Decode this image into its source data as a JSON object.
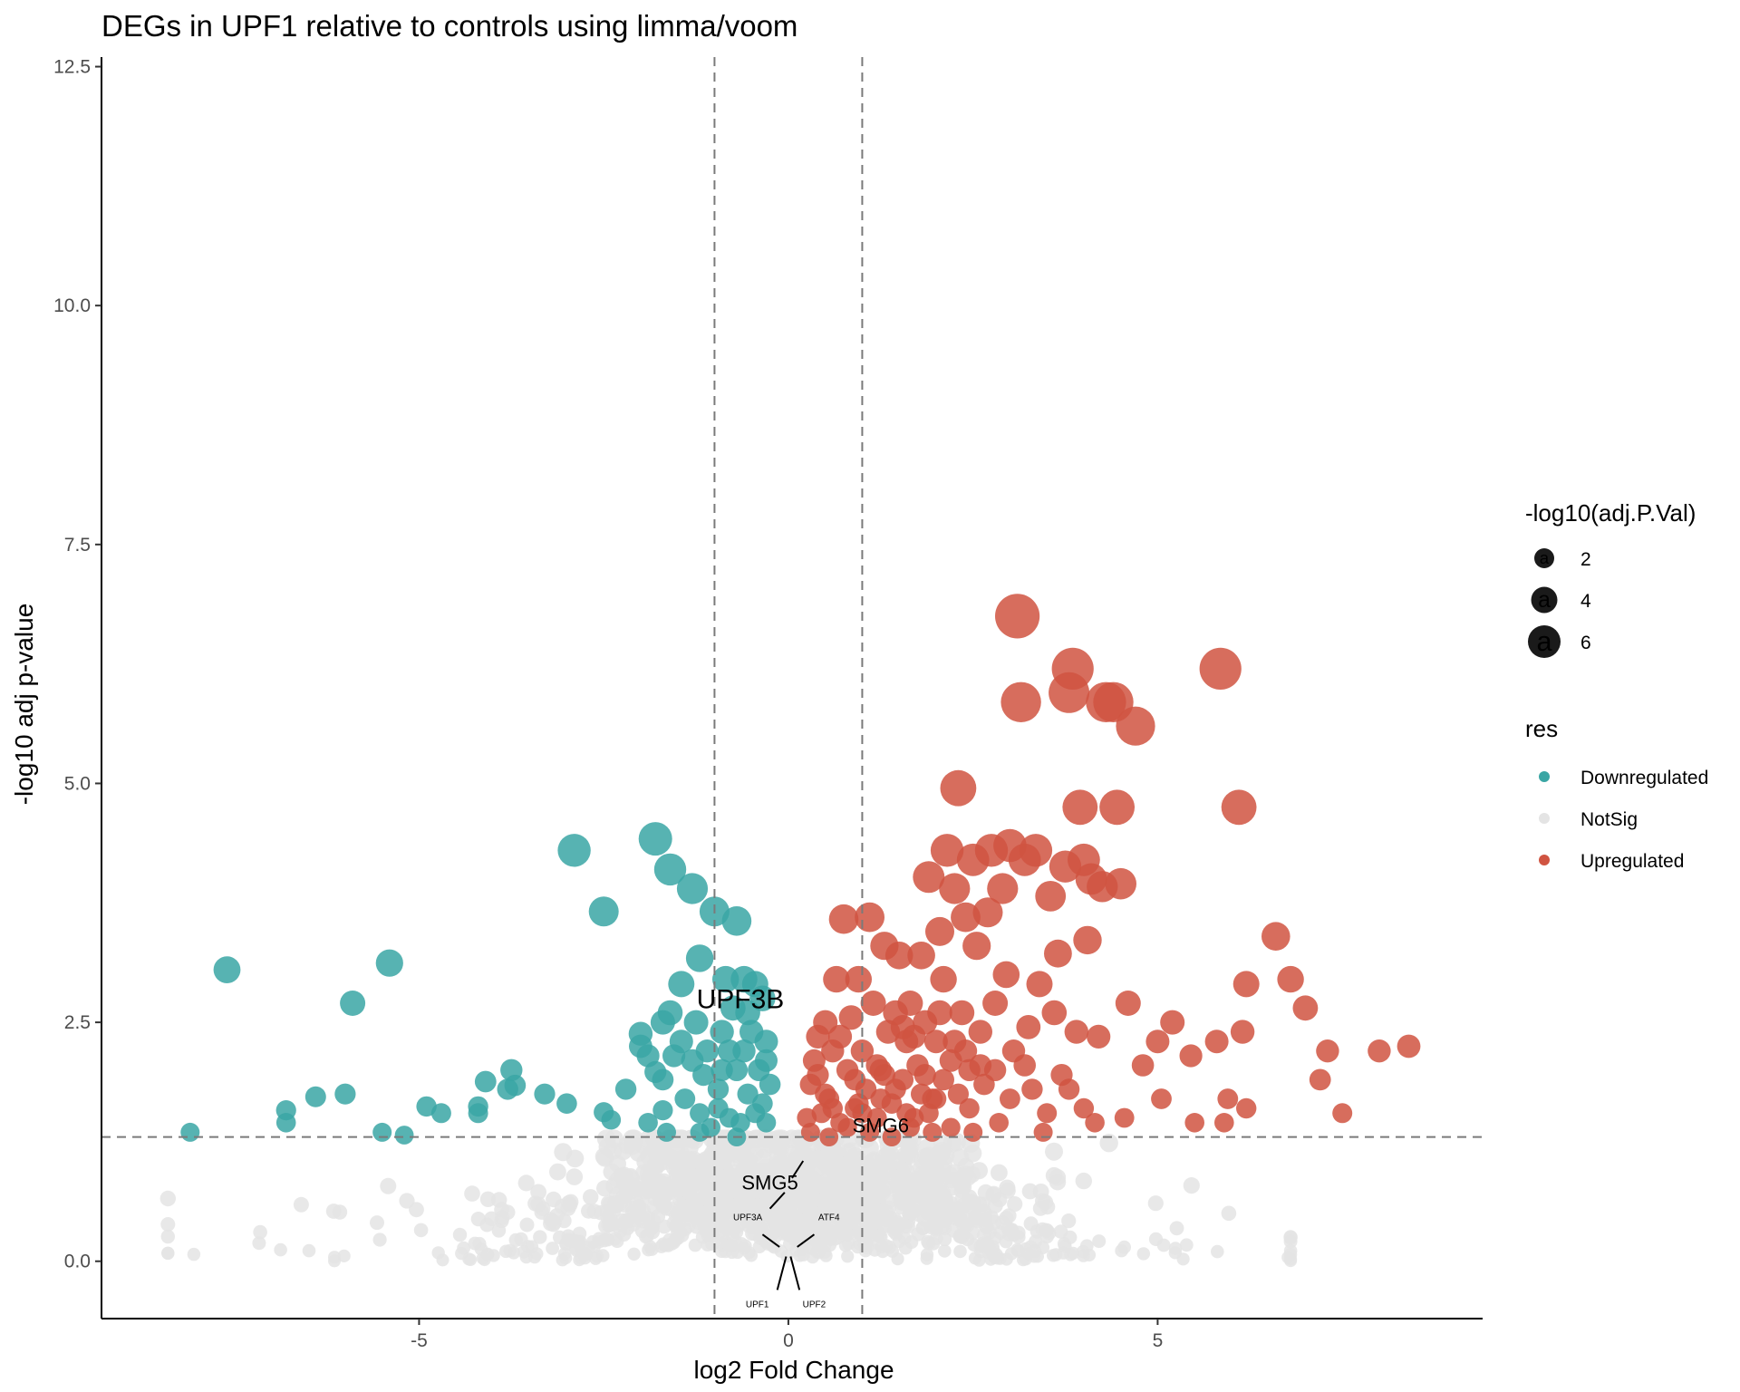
{
  "chart_data": {
    "type": "scatter",
    "title": "DEGs in UPF1 relative to controls using limma/voom",
    "xlabel": "log2 Fold Change",
    "ylabel": "-log10 adj p-value",
    "xlim": [
      -9.3,
      9.4
    ],
    "ylim": [
      -0.6,
      12.6
    ],
    "x_ticks": [
      -5,
      0,
      5
    ],
    "x_tick_labels": [
      "-5",
      "0",
      "5"
    ],
    "y_ticks": [
      0,
      2.5,
      5,
      7.5,
      10,
      12.5
    ],
    "y_tick_labels": [
      "0.0",
      "2.5",
      "5.0",
      "7.5",
      "10.0",
      "12.5"
    ],
    "thresholds": {
      "log2fc": [
        -1,
        1
      ],
      "neg_log10_padj": 1.3
    },
    "colors": {
      "Downregulated": "#3aa6a4",
      "NotSig": "#e4e4e4",
      "Upregulated": "#d05441"
    },
    "legend_size": {
      "title": "-log10(adj.P.Val)",
      "entries": [
        {
          "label": "2",
          "value": 2
        },
        {
          "label": "4",
          "value": 4
        },
        {
          "label": "6",
          "value": 6
        }
      ],
      "glyph": "a"
    },
    "legend_color": {
      "title": "res",
      "entries": [
        {
          "label": "Downregulated"
        },
        {
          "label": "NotSig"
        },
        {
          "label": "Upregulated"
        }
      ]
    },
    "series": [
      {
        "name": "Downregulated",
        "points": [
          [
            -8.1,
            1.35
          ],
          [
            -7.6,
            3.05
          ],
          [
            -6.8,
            1.45
          ],
          [
            -6.8,
            1.58
          ],
          [
            -6.4,
            1.72
          ],
          [
            -6.0,
            1.75
          ],
          [
            -5.9,
            2.7
          ],
          [
            -5.5,
            1.35
          ],
          [
            -5.4,
            3.12
          ],
          [
            -5.2,
            1.32
          ],
          [
            -4.9,
            1.62
          ],
          [
            -4.7,
            1.55
          ],
          [
            -4.2,
            1.55
          ],
          [
            -4.2,
            1.62
          ],
          [
            -4.1,
            1.88
          ],
          [
            -3.8,
            1.8
          ],
          [
            -3.75,
            2.0
          ],
          [
            -3.7,
            1.84
          ],
          [
            -3.3,
            1.75
          ],
          [
            -3.0,
            1.65
          ],
          [
            -2.9,
            4.3
          ],
          [
            -2.5,
            3.66
          ],
          [
            -2.5,
            1.56
          ],
          [
            -2.4,
            1.48
          ],
          [
            -2.2,
            1.8
          ],
          [
            -2.0,
            2.38
          ],
          [
            -2.0,
            2.25
          ],
          [
            -1.9,
            1.45
          ],
          [
            -1.9,
            2.15
          ],
          [
            -1.8,
            4.42
          ],
          [
            -1.8,
            1.98
          ],
          [
            -1.7,
            1.58
          ],
          [
            -1.7,
            2.5
          ],
          [
            -1.7,
            1.9
          ],
          [
            -1.65,
            1.35
          ],
          [
            -1.6,
            4.1
          ],
          [
            -1.6,
            2.6
          ],
          [
            -1.55,
            2.15
          ],
          [
            -1.45,
            2.9
          ],
          [
            -1.45,
            2.3
          ],
          [
            -1.4,
            1.7
          ],
          [
            -1.3,
            3.9
          ],
          [
            -1.3,
            2.1
          ],
          [
            -1.25,
            2.5
          ],
          [
            -1.2,
            3.17
          ],
          [
            -1.2,
            1.55
          ],
          [
            -1.15,
            1.95
          ],
          [
            -1.1,
            2.2
          ],
          [
            -1.05,
            1.4
          ],
          [
            -1.0,
            3.66
          ],
          [
            -0.95,
            1.6
          ],
          [
            -0.9,
            2.0
          ],
          [
            -0.9,
            2.4
          ],
          [
            -0.85,
            2.95
          ],
          [
            -0.8,
            1.5
          ],
          [
            -0.75,
            2.65
          ],
          [
            -0.7,
            3.56
          ],
          [
            -0.7,
            2.0
          ],
          [
            -0.65,
            1.45
          ],
          [
            -0.6,
            2.2
          ],
          [
            -0.6,
            2.95
          ],
          [
            -0.55,
            1.75
          ],
          [
            -0.5,
            2.4
          ],
          [
            -0.45,
            1.55
          ],
          [
            -0.4,
            2.0
          ],
          [
            -0.35,
            2.75
          ],
          [
            -0.3,
            1.45
          ],
          [
            -0.3,
            2.3
          ],
          [
            -0.25,
            1.85
          ],
          [
            -1.2,
            1.35
          ],
          [
            -0.95,
            1.8
          ],
          [
            -0.8,
            2.2
          ],
          [
            -0.7,
            1.3
          ],
          [
            -0.55,
            2.6
          ],
          [
            -0.45,
            2.9
          ],
          [
            -0.35,
            1.65
          ],
          [
            -0.3,
            2.1
          ]
        ]
      },
      {
        "name": "Upregulated",
        "points": [
          [
            0.25,
            1.5
          ],
          [
            0.3,
            1.85
          ],
          [
            0.35,
            2.1
          ],
          [
            0.4,
            2.35
          ],
          [
            0.45,
            1.55
          ],
          [
            0.5,
            2.5
          ],
          [
            0.55,
            1.7
          ],
          [
            0.6,
            2.2
          ],
          [
            0.65,
            2.95
          ],
          [
            0.7,
            1.45
          ],
          [
            0.75,
            3.58
          ],
          [
            0.8,
            2.0
          ],
          [
            0.85,
            2.55
          ],
          [
            0.9,
            1.6
          ],
          [
            0.95,
            2.95
          ],
          [
            1.0,
            2.2
          ],
          [
            1.05,
            1.8
          ],
          [
            1.1,
            3.6
          ],
          [
            1.15,
            2.7
          ],
          [
            1.2,
            1.5
          ],
          [
            1.25,
            2.0
          ],
          [
            1.3,
            3.3
          ],
          [
            1.35,
            2.4
          ],
          [
            1.4,
            1.65
          ],
          [
            1.45,
            2.6
          ],
          [
            1.5,
            3.2
          ],
          [
            1.55,
            1.9
          ],
          [
            1.6,
            2.3
          ],
          [
            1.65,
            2.7
          ],
          [
            1.7,
            1.5
          ],
          [
            1.75,
            2.05
          ],
          [
            1.8,
            3.2
          ],
          [
            1.85,
            2.5
          ],
          [
            1.9,
            4.02
          ],
          [
            1.95,
            1.7
          ],
          [
            2.0,
            2.3
          ],
          [
            2.05,
            3.45
          ],
          [
            2.1,
            2.95
          ],
          [
            2.15,
            4.3
          ],
          [
            2.2,
            2.1
          ],
          [
            2.25,
            3.9
          ],
          [
            2.3,
            4.95
          ],
          [
            2.35,
            2.6
          ],
          [
            2.4,
            3.6
          ],
          [
            2.45,
            1.6
          ],
          [
            2.5,
            4.2
          ],
          [
            2.55,
            3.3
          ],
          [
            2.6,
            2.4
          ],
          [
            2.65,
            1.85
          ],
          [
            2.7,
            3.65
          ],
          [
            2.75,
            4.3
          ],
          [
            2.8,
            2.7
          ],
          [
            2.85,
            1.45
          ],
          [
            2.9,
            3.9
          ],
          [
            2.95,
            3.0
          ],
          [
            3.0,
            4.35
          ],
          [
            3.05,
            2.2
          ],
          [
            3.1,
            6.75
          ],
          [
            3.15,
            5.85
          ],
          [
            3.2,
            4.2
          ],
          [
            3.25,
            2.45
          ],
          [
            3.3,
            1.8
          ],
          [
            3.35,
            4.3
          ],
          [
            3.4,
            2.9
          ],
          [
            3.5,
            1.55
          ],
          [
            3.55,
            3.82
          ],
          [
            3.6,
            2.6
          ],
          [
            3.65,
            3.22
          ],
          [
            3.7,
            1.95
          ],
          [
            3.75,
            4.13
          ],
          [
            3.8,
            5.95
          ],
          [
            3.85,
            6.2
          ],
          [
            3.9,
            2.4
          ],
          [
            3.95,
            4.75
          ],
          [
            4.0,
            4.2
          ],
          [
            4.05,
            3.36
          ],
          [
            4.1,
            4.0
          ],
          [
            4.15,
            1.45
          ],
          [
            4.2,
            2.35
          ],
          [
            4.25,
            3.92
          ],
          [
            4.3,
            5.85
          ],
          [
            4.4,
            5.85
          ],
          [
            4.45,
            4.75
          ],
          [
            4.5,
            3.95
          ],
          [
            4.55,
            1.5
          ],
          [
            4.6,
            2.7
          ],
          [
            4.7,
            5.6
          ],
          [
            4.8,
            2.05
          ],
          [
            5.0,
            2.3
          ],
          [
            5.05,
            1.7
          ],
          [
            5.2,
            2.5
          ],
          [
            5.45,
            2.15
          ],
          [
            5.5,
            1.45
          ],
          [
            5.8,
            2.3
          ],
          [
            5.85,
            6.2
          ],
          [
            5.9,
            1.45
          ],
          [
            5.95,
            1.7
          ],
          [
            6.1,
            4.75
          ],
          [
            6.15,
            2.4
          ],
          [
            6.2,
            2.9
          ],
          [
            6.2,
            1.6
          ],
          [
            6.6,
            3.4
          ],
          [
            6.8,
            2.95
          ],
          [
            7.0,
            2.65
          ],
          [
            7.2,
            1.9
          ],
          [
            7.3,
            2.2
          ],
          [
            7.5,
            1.55
          ],
          [
            8.0,
            2.2
          ],
          [
            8.4,
            2.25
          ],
          [
            0.3,
            1.35
          ],
          [
            0.55,
            1.3
          ],
          [
            0.8,
            1.4
          ],
          [
            1.1,
            1.35
          ],
          [
            1.4,
            1.3
          ],
          [
            1.65,
            1.4
          ],
          [
            1.95,
            1.35
          ],
          [
            2.2,
            1.4
          ],
          [
            2.5,
            1.35
          ],
          [
            0.4,
            1.95
          ],
          [
            0.7,
            2.35
          ],
          [
            1.0,
            1.55
          ],
          [
            1.2,
            2.05
          ],
          [
            1.45,
            1.8
          ],
          [
            1.7,
            2.35
          ],
          [
            1.9,
            1.55
          ],
          [
            2.1,
            1.9
          ],
          [
            2.4,
            2.2
          ],
          [
            0.6,
            1.6
          ],
          [
            0.9,
            1.9
          ],
          [
            1.3,
            1.95
          ],
          [
            1.6,
            1.55
          ],
          [
            2.0,
            1.7
          ],
          [
            2.3,
            1.75
          ],
          [
            2.6,
            2.05
          ],
          [
            2.8,
            2.0
          ],
          [
            3.0,
            1.7
          ],
          [
            3.2,
            2.05
          ],
          [
            3.45,
            1.35
          ],
          [
            3.8,
            1.8
          ],
          [
            4.0,
            1.6
          ],
          [
            1.55,
            2.45
          ],
          [
            1.85,
            1.95
          ],
          [
            2.05,
            2.6
          ],
          [
            2.25,
            2.3
          ],
          [
            2.45,
            2.0
          ],
          [
            0.5,
            1.75
          ],
          [
            0.95,
            1.65
          ],
          [
            1.25,
            1.7
          ],
          [
            1.8,
            1.75
          ]
        ]
      }
    ],
    "annotations": [
      {
        "text": "UPF3B",
        "x": -0.65,
        "y": 2.65,
        "size": "large"
      },
      {
        "text": "SMG6",
        "x": 1.25,
        "y": 1.35,
        "size": "medium"
      },
      {
        "text": "SMG5",
        "x": -0.25,
        "y": 0.75,
        "size": "medium"
      },
      {
        "text": "UPF3A",
        "x": -0.55,
        "y": 0.43,
        "size": "small"
      },
      {
        "text": "ATF4",
        "x": 0.55,
        "y": 0.43,
        "size": "small"
      },
      {
        "text": "UPF1",
        "x": -0.42,
        "y": -0.48,
        "size": "small"
      },
      {
        "text": "UPF2",
        "x": 0.35,
        "y": -0.48,
        "size": "small"
      }
    ]
  }
}
